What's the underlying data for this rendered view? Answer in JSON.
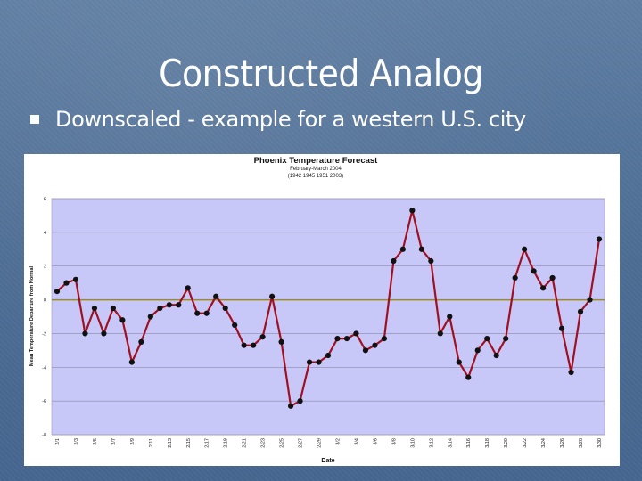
{
  "slide": {
    "title": "Constructed Analog",
    "bullet": "Downscaled - example for a western U.S. city"
  },
  "colors": {
    "plot_background": "#c8c8f8",
    "line": "#a01020",
    "marker": "#111111",
    "zero_line": "#9a8a28"
  },
  "chart_data": {
    "type": "line",
    "title": "Phoenix Temperature Forecast",
    "subtitle_lines": [
      "February-March 2004",
      "(1942 1945 1951 2003)"
    ],
    "xlabel": "Date",
    "ylabel": "Mean Temperature Departure from Normal",
    "ylim": [
      -8,
      6
    ],
    "yticks": [
      -8,
      -6,
      -4,
      -2,
      0,
      2,
      4,
      6
    ],
    "grid": true,
    "legend": "none",
    "x_tick_labels": [
      "2/1",
      "2/3",
      "2/5",
      "2/7",
      "2/9",
      "2/11",
      "2/13",
      "2/15",
      "2/17",
      "2/19",
      "2/21",
      "2/23",
      "2/25",
      "2/27",
      "2/29",
      "3/2",
      "3/4",
      "3/6",
      "3/8",
      "3/10",
      "3/12",
      "3/14",
      "3/16",
      "3/18",
      "3/20",
      "3/22",
      "3/24",
      "3/26",
      "3/28",
      "3/30"
    ],
    "series": [
      {
        "values": [
          0.5,
          1.0,
          1.2,
          -2.0,
          -0.5,
          -2.0,
          -0.5,
          -1.2,
          -3.7,
          -2.5,
          -1.0,
          -0.5,
          -0.3,
          -0.3,
          0.7,
          -0.8,
          -0.8,
          0.2,
          -0.5,
          -1.5,
          -2.7,
          -2.7,
          -2.2,
          0.2,
          -2.5,
          -6.3,
          -6.0,
          -3.7,
          -3.7,
          -3.3,
          -2.3,
          -2.3,
          -2.0,
          -3.0,
          -2.7,
          -2.3,
          2.3,
          3.0,
          5.3,
          3.0,
          2.3,
          -2.0,
          -1.0,
          -3.7,
          -4.6,
          -3.0,
          -2.3,
          -3.3,
          -2.3,
          1.3,
          3.0,
          1.7,
          0.7,
          1.3,
          -1.7,
          -4.3,
          -0.7,
          0.0,
          3.6
        ]
      }
    ]
  }
}
